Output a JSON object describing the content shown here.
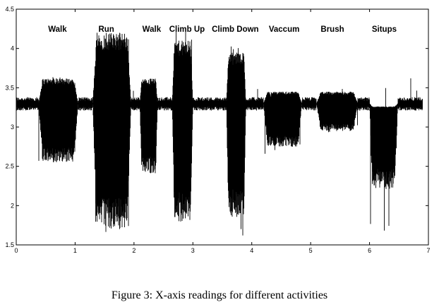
{
  "caption": "Figure 3: X-axis readings for different activities",
  "chart_data": {
    "type": "line",
    "title": "",
    "xlabel": "",
    "ylabel": "",
    "xlim": [
      0,
      7
    ],
    "ylim": [
      1.5,
      4.5
    ],
    "xticks": [
      0,
      1,
      2,
      3,
      4,
      5,
      6,
      7
    ],
    "yticks": [
      1.5,
      2,
      2.5,
      3,
      3.5,
      4,
      4.5
    ],
    "grid": false,
    "line_color": "#000000",
    "baseline": 3.3,
    "segments": [
      {
        "activity": "Walk",
        "label_x": 0.7,
        "start": 0.38,
        "end": 1.05,
        "min": 2.55,
        "max": 3.62,
        "spike_min": 2.55,
        "spike_max": 3.65
      },
      {
        "activity": "Run",
        "label_x": 1.53,
        "start": 1.3,
        "end": 1.95,
        "min": 1.7,
        "max": 4.2,
        "spike_min": 1.65,
        "spike_max": 4.2
      },
      {
        "activity": "Walk",
        "label_x": 2.3,
        "start": 2.1,
        "end": 2.4,
        "min": 2.4,
        "max": 3.62,
        "spike_min": 2.35,
        "spike_max": 3.62
      },
      {
        "activity": "Climb Up",
        "label_x": 2.9,
        "start": 2.65,
        "end": 3.0,
        "min": 1.8,
        "max": 4.1,
        "spike_min": 1.75,
        "spike_max": 4.25
      },
      {
        "activity": "Climb Down",
        "label_x": 3.72,
        "start": 3.57,
        "end": 3.9,
        "min": 1.85,
        "max": 3.95,
        "spike_min": 1.6,
        "spike_max": 4.1
      },
      {
        "activity": "Vaccum",
        "label_x": 4.55,
        "start": 4.2,
        "end": 4.85,
        "min": 2.75,
        "max": 3.45,
        "spike_min": 2.65,
        "spike_max": 3.5
      },
      {
        "activity": "Brush",
        "label_x": 5.37,
        "start": 5.1,
        "end": 5.8,
        "min": 2.95,
        "max": 3.45,
        "spike_min": 2.9,
        "spike_max": 3.5
      },
      {
        "activity": "Situps",
        "label_x": 6.25,
        "start": 6.0,
        "end": 6.48,
        "min": 2.2,
        "max": 3.25,
        "spike_min": 1.65,
        "spike_max": 3.6
      }
    ]
  }
}
